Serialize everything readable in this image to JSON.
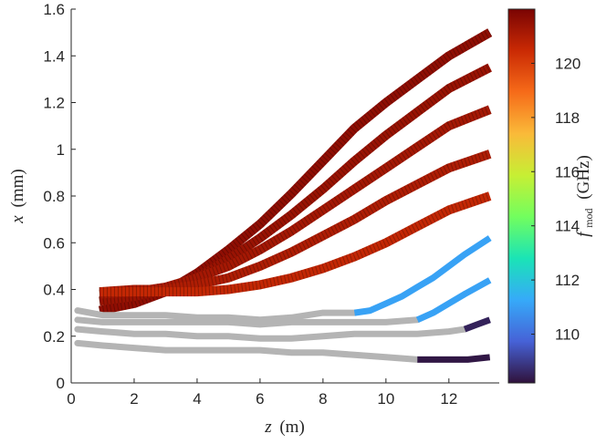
{
  "chart_data": {
    "type": "line",
    "xlabel_var": "z",
    "xlabel_unit": "(m)",
    "ylabel_var": "x",
    "ylabel_unit": "(mm)",
    "colorbar_label_var": "f",
    "colorbar_label_sub": "mod",
    "colorbar_label_unit": "(GHz)",
    "xlim": [
      0,
      13.6
    ],
    "ylim": [
      0,
      1.6
    ],
    "xticks": [
      0,
      2,
      4,
      6,
      8,
      10,
      12
    ],
    "yticks": [
      0,
      0.2,
      0.4,
      0.6,
      0.8,
      1,
      1.2,
      1.4,
      1.6
    ],
    "colorbar_range": [
      108.2,
      122
    ],
    "colorbar_ticks": [
      110,
      112,
      114,
      116,
      118,
      120
    ],
    "grid": false,
    "colormap": [
      "#30123b",
      "#4662d7",
      "#36aaf9",
      "#1ae4b6",
      "#72fe5e",
      "#c7ef34",
      "#faba39",
      "#f66b19",
      "#ca2a04",
      "#7a0403"
    ],
    "untracked_color": "#b4b4b4",
    "series": [
      {
        "freq": 121.6,
        "points": [
          [
            0.9,
            0.31
          ],
          [
            2,
            0.34
          ],
          [
            3,
            0.39
          ],
          [
            4,
            0.47
          ],
          [
            5,
            0.57
          ],
          [
            6,
            0.68
          ],
          [
            7,
            0.81
          ],
          [
            8,
            0.95
          ],
          [
            9,
            1.09
          ],
          [
            10,
            1.2
          ],
          [
            11,
            1.3
          ],
          [
            12,
            1.4
          ],
          [
            13.3,
            1.5
          ]
        ]
      },
      {
        "freq": 121.4,
        "points": [
          [
            0.9,
            0.35
          ],
          [
            2,
            0.37
          ],
          [
            3,
            0.4
          ],
          [
            4,
            0.45
          ],
          [
            5,
            0.53
          ],
          [
            6,
            0.62
          ],
          [
            7,
            0.72
          ],
          [
            8,
            0.83
          ],
          [
            9,
            0.95
          ],
          [
            10,
            1.06
          ],
          [
            11,
            1.16
          ],
          [
            12,
            1.26
          ],
          [
            13.3,
            1.35
          ]
        ]
      },
      {
        "freq": 121.2,
        "points": [
          [
            0.9,
            0.38
          ],
          [
            2,
            0.39
          ],
          [
            3,
            0.41
          ],
          [
            4,
            0.45
          ],
          [
            5,
            0.5
          ],
          [
            6,
            0.57
          ],
          [
            7,
            0.65
          ],
          [
            8,
            0.74
          ],
          [
            9,
            0.83
          ],
          [
            10,
            0.92
          ],
          [
            11,
            1.01
          ],
          [
            12,
            1.1
          ],
          [
            13.3,
            1.17
          ]
        ]
      },
      {
        "freq": 121.0,
        "points": [
          [
            0.9,
            0.39
          ],
          [
            2,
            0.4
          ],
          [
            3,
            0.4
          ],
          [
            4,
            0.42
          ],
          [
            5,
            0.45
          ],
          [
            6,
            0.5
          ],
          [
            7,
            0.56
          ],
          [
            8,
            0.63
          ],
          [
            9,
            0.7
          ],
          [
            10,
            0.78
          ],
          [
            11,
            0.85
          ],
          [
            12,
            0.92
          ],
          [
            13.3,
            0.98
          ]
        ]
      },
      {
        "freq": 120.6,
        "points": [
          [
            0.9,
            0.39
          ],
          [
            2,
            0.39
          ],
          [
            3,
            0.39
          ],
          [
            4,
            0.39
          ],
          [
            5,
            0.4
          ],
          [
            6,
            0.42
          ],
          [
            7,
            0.45
          ],
          [
            8,
            0.49
          ],
          [
            9,
            0.54
          ],
          [
            10,
            0.6
          ],
          [
            11,
            0.67
          ],
          [
            12,
            0.74
          ],
          [
            13.3,
            0.8
          ]
        ]
      },
      {
        "freq": 111.1,
        "pre": [
          [
            0.2,
            0.31
          ],
          [
            1,
            0.29
          ],
          [
            2,
            0.29
          ],
          [
            3,
            0.29
          ],
          [
            4,
            0.28
          ],
          [
            5,
            0.28
          ],
          [
            6,
            0.27
          ],
          [
            7,
            0.28
          ],
          [
            8,
            0.3
          ],
          [
            9,
            0.3
          ]
        ],
        "points": [
          [
            9,
            0.3
          ],
          [
            9.5,
            0.31
          ],
          [
            10,
            0.34
          ],
          [
            10.5,
            0.37
          ],
          [
            11,
            0.41
          ],
          [
            11.5,
            0.45
          ],
          [
            12,
            0.5
          ],
          [
            12.5,
            0.55
          ],
          [
            13.3,
            0.62
          ]
        ]
      },
      {
        "freq": 111.1,
        "pre": [
          [
            0.2,
            0.27
          ],
          [
            1,
            0.26
          ],
          [
            2,
            0.26
          ],
          [
            3,
            0.26
          ],
          [
            4,
            0.26
          ],
          [
            5,
            0.26
          ],
          [
            6,
            0.25
          ],
          [
            7,
            0.26
          ],
          [
            8,
            0.26
          ],
          [
            9,
            0.26
          ],
          [
            10,
            0.26
          ],
          [
            11,
            0.27
          ]
        ],
        "points": [
          [
            11,
            0.27
          ],
          [
            11.5,
            0.3
          ],
          [
            12,
            0.34
          ],
          [
            12.5,
            0.38
          ],
          [
            13.3,
            0.44
          ]
        ]
      },
      {
        "freq": 108.5,
        "pre": [
          [
            0.2,
            0.23
          ],
          [
            1,
            0.22
          ],
          [
            2,
            0.21
          ],
          [
            3,
            0.21
          ],
          [
            4,
            0.2
          ],
          [
            5,
            0.2
          ],
          [
            6,
            0.19
          ],
          [
            7,
            0.19
          ],
          [
            8,
            0.2
          ],
          [
            9,
            0.21
          ],
          [
            10,
            0.21
          ],
          [
            11,
            0.21
          ],
          [
            12,
            0.22
          ],
          [
            12.5,
            0.23
          ]
        ],
        "points": [
          [
            12.5,
            0.23
          ],
          [
            12.9,
            0.25
          ],
          [
            13.3,
            0.27
          ]
        ]
      },
      {
        "freq": 108.3,
        "pre": [
          [
            0.2,
            0.17
          ],
          [
            1,
            0.16
          ],
          [
            2,
            0.15
          ],
          [
            3,
            0.14
          ],
          [
            4,
            0.14
          ],
          [
            5,
            0.14
          ],
          [
            6,
            0.14
          ],
          [
            7,
            0.13
          ],
          [
            8,
            0.13
          ],
          [
            9,
            0.12
          ],
          [
            10,
            0.11
          ],
          [
            11,
            0.1
          ]
        ],
        "points": [
          [
            11,
            0.1
          ],
          [
            12,
            0.1
          ],
          [
            12.6,
            0.1
          ],
          [
            13.3,
            0.11
          ]
        ]
      }
    ]
  }
}
